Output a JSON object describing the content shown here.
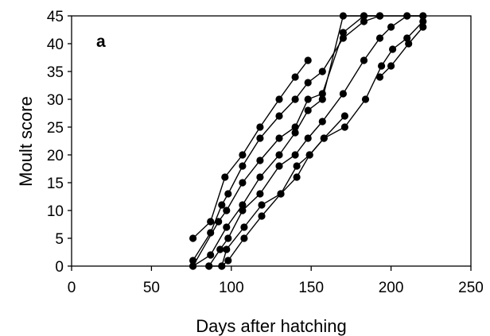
{
  "chart_data": {
    "type": "line",
    "panel_label": "a",
    "title": "",
    "xlabel": "Days after hatching",
    "ylabel": "Moult score",
    "xlim": [
      0,
      250
    ],
    "ylim": [
      0,
      45
    ],
    "x_ticks": [
      0,
      50,
      100,
      150,
      200,
      250
    ],
    "y_ticks": [
      0,
      5,
      10,
      15,
      20,
      25,
      30,
      35,
      40,
      45
    ],
    "grid": false,
    "legend": "none",
    "marker": "filled-circle",
    "line_color": "#000000",
    "series": [
      {
        "x": [
          76,
          87,
          96,
          107,
          118,
          130,
          140,
          148
        ],
        "y": [
          5,
          8,
          16,
          20,
          25,
          30,
          34,
          37
        ]
      },
      {
        "x": [
          76,
          87,
          94,
          98,
          107,
          118,
          130,
          140,
          148,
          157,
          170,
          183,
          193
        ],
        "y": [
          1,
          6,
          11,
          13,
          18,
          23,
          27,
          30,
          33,
          35,
          41,
          44,
          45
        ]
      },
      {
        "x": [
          76,
          92,
          97,
          107,
          118,
          130,
          140,
          148,
          157,
          170,
          183,
          193
        ],
        "y": [
          0,
          8,
          10,
          15,
          19,
          23,
          25,
          30,
          31,
          42,
          45,
          45
        ]
      },
      {
        "x": [
          76,
          87,
          97,
          107,
          118,
          130,
          140,
          148,
          157,
          170,
          183,
          193,
          210,
          220
        ],
        "y": [
          0,
          2,
          7,
          11,
          16,
          20,
          24,
          28,
          30,
          45,
          45,
          45,
          45,
          45
        ]
      },
      {
        "x": [
          86,
          93,
          98,
          107,
          118,
          130,
          140,
          148,
          157,
          170,
          183,
          193,
          200,
          210,
          220
        ],
        "y": [
          0,
          3,
          5,
          10,
          13,
          18,
          20,
          23,
          26,
          31,
          37,
          41,
          43,
          45,
          45
        ]
      },
      {
        "x": [
          86,
          94,
          97,
          108,
          119,
          131,
          141,
          149,
          158,
          171
        ],
        "y": [
          0,
          0,
          3,
          7,
          11,
          13,
          16,
          20,
          23,
          27
        ]
      },
      {
        "x": [
          94,
          98,
          108,
          119,
          131,
          141,
          149,
          158,
          171,
          184,
          194,
          201,
          210,
          220
        ],
        "y": [
          0,
          1,
          5,
          9,
          13,
          18,
          20,
          23,
          25,
          30,
          36,
          39,
          41,
          44
        ]
      },
      {
        "x": [
          193,
          200,
          211,
          220
        ],
        "y": [
          34,
          36,
          40,
          43
        ]
      }
    ]
  }
}
